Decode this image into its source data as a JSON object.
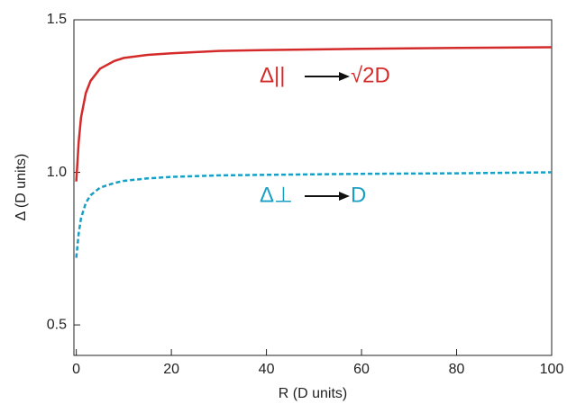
{
  "chart_data": {
    "type": "line",
    "xlabel": "R (D units)",
    "ylabel": "Δ (D units)",
    "xlim": [
      -0.5,
      100
    ],
    "ylim": [
      0.4,
      1.5
    ],
    "xticks": [
      0,
      20,
      40,
      60,
      80,
      100
    ],
    "yticks": [
      0.5,
      {
        "value": 1,
        "label": "1.0"
      },
      1.5
    ],
    "series": [
      {
        "color": "#d42a2a",
        "dash": false,
        "x": [
          0,
          0.5,
          1,
          2,
          3,
          5,
          8,
          10,
          15,
          20,
          30,
          40,
          60,
          80,
          100
        ],
        "values": [
          0.97,
          1.1,
          1.18,
          1.26,
          1.3,
          1.34,
          1.365,
          1.375,
          1.385,
          1.39,
          1.398,
          1.401,
          1.405,
          1.408,
          1.41
        ]
      },
      {
        "color": "#1a9fc4",
        "dash": true,
        "x": [
          0,
          0.5,
          1,
          2,
          3,
          5,
          8,
          10,
          15,
          20,
          30,
          40,
          60,
          80,
          100
        ],
        "values": [
          0.72,
          0.8,
          0.85,
          0.9,
          0.925,
          0.95,
          0.965,
          0.972,
          0.98,
          0.985,
          0.99,
          0.992,
          0.995,
          0.997,
          1.0
        ]
      }
    ],
    "annotations": [
      "Δ||",
      "√2D",
      "Δ⊥",
      "D"
    ]
  }
}
